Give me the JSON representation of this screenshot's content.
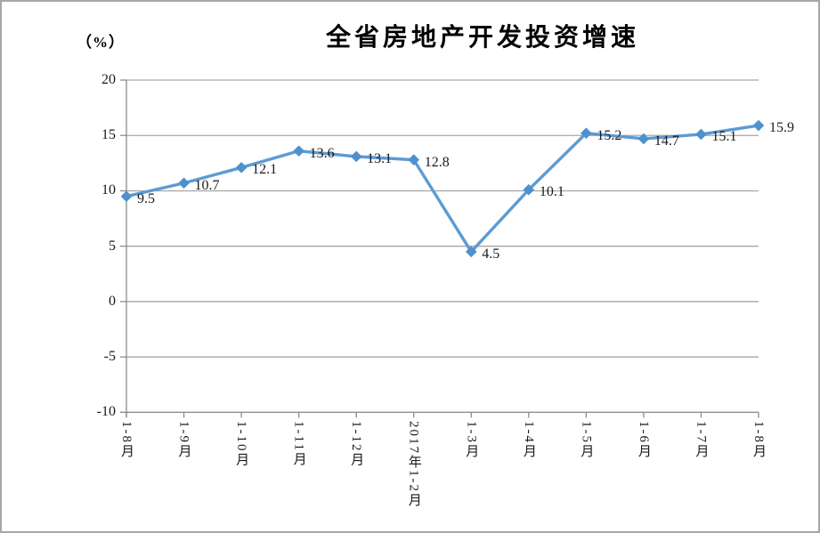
{
  "window": {
    "background": "#ffffff",
    "border_color": "#a6a6a6"
  },
  "chart_data": {
    "type": "line",
    "title": "全省房地产开发投资增速",
    "unit_label": "（%）",
    "categories": [
      "1-8月",
      "1-9月",
      "1-10月",
      "1-11月",
      "1-12月",
      "2017年1-2月",
      "1-3月",
      "1-4月",
      "1-5月",
      "1-6月",
      "1-7月",
      "1-8月"
    ],
    "series": [
      {
        "name": "全省房地产开发投资增速",
        "values": [
          9.5,
          10.7,
          12.1,
          13.6,
          13.1,
          12.8,
          4.5,
          10.1,
          15.2,
          14.7,
          15.1,
          15.9
        ]
      }
    ],
    "data_labels_visible": true,
    "xlabel": "",
    "ylabel": "",
    "ylim": [
      -10,
      20
    ],
    "yticks": [
      20,
      15,
      10,
      5,
      0,
      -5,
      -10
    ],
    "grid": true,
    "legend_position": "none",
    "colors": {
      "line": "#5b9bd5",
      "marker": "#4f91cd",
      "gridline": "#a6a6a6",
      "axis": "#8c8c8c",
      "text": "#1a1a1a",
      "title": "#000000"
    },
    "marker_shape": "diamond"
  }
}
